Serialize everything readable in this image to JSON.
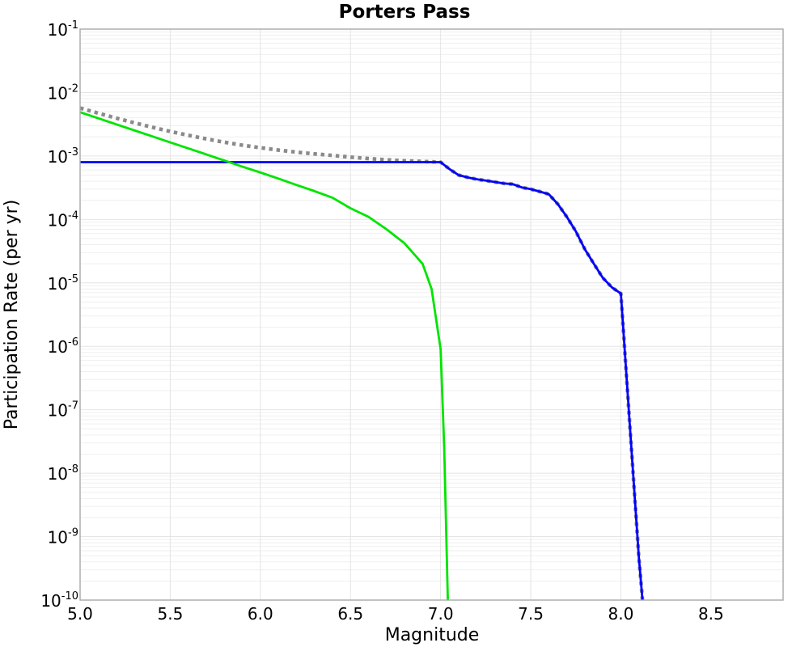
{
  "title": "Porters Pass",
  "chart_data": {
    "type": "line",
    "title": "Porters Pass",
    "xlabel": "Magnitude",
    "ylabel": "Participation Rate (per yr)",
    "xlim": [
      5.0,
      8.9
    ],
    "yscale": "log",
    "ylim": [
      1e-10,
      0.1
    ],
    "grid": true,
    "legend_position": "none",
    "background_color": "#ffffff",
    "frame_color": "#a8a8a8",
    "grid_minor_color": "#efefef",
    "grid_major_color": "#e4e4e4",
    "x_ticks": [
      {
        "value": 5.0,
        "label": "5.0"
      },
      {
        "value": 5.5,
        "label": "5.5"
      },
      {
        "value": 6.0,
        "label": "6.0"
      },
      {
        "value": 6.5,
        "label": "6.5"
      },
      {
        "value": 7.0,
        "label": "7.0"
      },
      {
        "value": 7.5,
        "label": "7.5"
      },
      {
        "value": 8.0,
        "label": "8.0"
      },
      {
        "value": 8.5,
        "label": "8.5"
      }
    ],
    "y_ticks": [
      {
        "base": "10",
        "exponent": "-1",
        "value": 0.1
      },
      {
        "base": "10",
        "exponent": "-2",
        "value": 0.01
      },
      {
        "base": "10",
        "exponent": "-3",
        "value": 0.001
      },
      {
        "base": "10",
        "exponent": "-4",
        "value": 0.0001
      },
      {
        "base": "10",
        "exponent": "-5",
        "value": 1e-05
      },
      {
        "base": "10",
        "exponent": "-6",
        "value": 1e-06
      },
      {
        "base": "10",
        "exponent": "-7",
        "value": 1e-07
      },
      {
        "base": "10",
        "exponent": "-8",
        "value": 1e-08
      },
      {
        "base": "10",
        "exponent": "-9",
        "value": 1e-09
      },
      {
        "base": "10",
        "exponent": "-10",
        "value": 1e-10
      }
    ],
    "series": [
      {
        "name": "gray-dotted-total-mfd",
        "color": "#8a8a8a",
        "style": "dotted",
        "stroke_width": 4.6,
        "points": [
          [
            5.0,
            0.0057
          ],
          [
            5.1,
            0.00474
          ],
          [
            5.2,
            0.00396
          ],
          [
            5.3,
            0.00334
          ],
          [
            5.4,
            0.00284
          ],
          [
            5.5,
            0.00244
          ],
          [
            5.6,
            0.00212
          ],
          [
            5.7,
            0.00186
          ],
          [
            5.8,
            0.00165
          ],
          [
            5.9,
            0.00148
          ],
          [
            6.0,
            0.00135
          ],
          [
            6.1,
            0.00124
          ],
          [
            6.2,
            0.00115
          ],
          [
            6.3,
            0.00108
          ],
          [
            6.4,
            0.00102
          ],
          [
            6.5,
            0.00096
          ],
          [
            6.6,
            0.00091
          ],
          [
            6.7,
            0.00087
          ],
          [
            6.8,
            0.00084
          ],
          [
            6.9,
            0.00082
          ],
          [
            6.95,
            0.00081
          ],
          [
            7.0,
            0.0008
          ],
          [
            7.05,
            0.00062
          ],
          [
            7.1,
            0.0005
          ],
          [
            7.15,
            0.00046
          ],
          [
            7.2,
            0.00043
          ],
          [
            7.25,
            0.00041
          ],
          [
            7.3,
            0.00039
          ],
          [
            7.35,
            0.00037
          ],
          [
            7.4,
            0.00036
          ],
          [
            7.45,
            0.00032
          ],
          [
            7.5,
            0.0003
          ],
          [
            7.55,
            0.000275
          ],
          [
            7.6,
            0.00025
          ],
          [
            7.65,
            0.000175
          ],
          [
            7.7,
            0.00011
          ],
          [
            7.75,
            6.5e-05
          ],
          [
            7.8,
            3.4e-05
          ],
          [
            7.85,
            2e-05
          ],
          [
            7.9,
            1.2e-05
          ],
          [
            7.95,
            8.5e-06
          ],
          [
            8.0,
            6.8e-06
          ],
          [
            8.05,
            5.5e-08
          ],
          [
            8.1,
            4.6e-10
          ],
          [
            8.12,
            1e-10
          ]
        ]
      },
      {
        "name": "blue-solid-supra-seismogenic",
        "color": "#0000ff",
        "style": "solid",
        "stroke_width": 2.8,
        "points": [
          [
            5.0,
            0.0008
          ],
          [
            7.0,
            0.0008
          ],
          [
            7.05,
            0.00062
          ],
          [
            7.1,
            0.0005
          ],
          [
            7.15,
            0.00046
          ],
          [
            7.2,
            0.00043
          ],
          [
            7.25,
            0.00041
          ],
          [
            7.3,
            0.00039
          ],
          [
            7.35,
            0.00037
          ],
          [
            7.4,
            0.00036
          ],
          [
            7.45,
            0.00032
          ],
          [
            7.5,
            0.0003
          ],
          [
            7.55,
            0.000275
          ],
          [
            7.6,
            0.00025
          ],
          [
            7.65,
            0.000175
          ],
          [
            7.7,
            0.00011
          ],
          [
            7.75,
            6.5e-05
          ],
          [
            7.8,
            3.4e-05
          ],
          [
            7.85,
            2e-05
          ],
          [
            7.9,
            1.2e-05
          ],
          [
            7.95,
            8.5e-06
          ],
          [
            8.0,
            6.8e-06
          ],
          [
            8.05,
            5.5e-08
          ],
          [
            8.1,
            4.6e-10
          ],
          [
            8.12,
            1e-10
          ]
        ]
      },
      {
        "name": "green-solid-sub-seismogenic",
        "color": "#00e400",
        "style": "solid",
        "stroke_width": 2.8,
        "points": [
          [
            5.0,
            0.0049
          ],
          [
            5.1,
            0.00394
          ],
          [
            5.2,
            0.00316
          ],
          [
            5.3,
            0.00254
          ],
          [
            5.4,
            0.00204
          ],
          [
            5.5,
            0.00164
          ],
          [
            5.6,
            0.00132
          ],
          [
            5.7,
            0.00106
          ],
          [
            5.8,
            0.00085
          ],
          [
            5.9,
            0.00068
          ],
          [
            6.0,
            0.00055
          ],
          [
            6.1,
            0.00044
          ],
          [
            6.2,
            0.00035
          ],
          [
            6.3,
            0.00028
          ],
          [
            6.4,
            0.00022
          ],
          [
            6.5,
            0.00015
          ],
          [
            6.6,
            0.00011
          ],
          [
            6.7,
            7e-05
          ],
          [
            6.8,
            4.2e-05
          ],
          [
            6.9,
            2e-05
          ],
          [
            6.95,
            8e-06
          ],
          [
            7.0,
            9e-07
          ],
          [
            7.02,
            2.5e-08
          ],
          [
            7.04,
            1e-10
          ]
        ]
      }
    ]
  }
}
